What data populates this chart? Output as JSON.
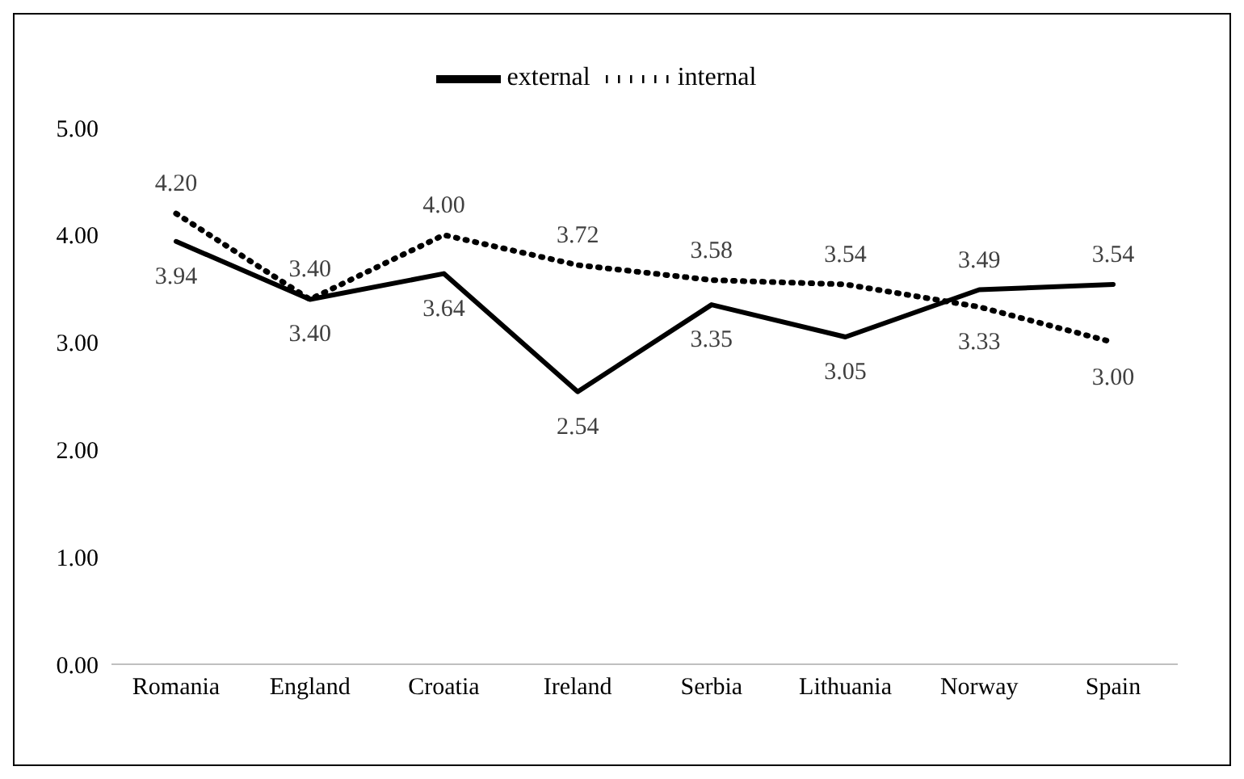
{
  "chart_data": {
    "type": "line",
    "categories": [
      "Romania",
      "England",
      "Croatia",
      "Ireland",
      "Serbia",
      "Lithuania",
      "Norway",
      "Spain"
    ],
    "series": [
      {
        "name": "external",
        "color": "#000000",
        "line_style": "solid",
        "values": [
          3.94,
          3.4,
          3.64,
          2.54,
          3.35,
          3.05,
          3.49,
          3.54
        ],
        "value_labels": [
          "3.94",
          "3.40",
          "3.64",
          "2.54",
          "3.35",
          "3.05",
          "3.49",
          "3.54"
        ]
      },
      {
        "name": "internal",
        "color": "#000000",
        "line_style": "dotted",
        "values": [
          4.2,
          3.4,
          4.0,
          3.72,
          3.58,
          3.54,
          3.33,
          3.0
        ],
        "value_labels": [
          "4.20",
          "3.40",
          "4.00",
          "3.72",
          "3.58",
          "3.54",
          "3.33",
          "3.00"
        ]
      }
    ],
    "ylim": [
      0,
      5
    ],
    "yticks": [
      {
        "value": 0,
        "label": "0.00"
      },
      {
        "value": 1,
        "label": "1.00"
      },
      {
        "value": 2,
        "label": "2.00"
      },
      {
        "value": 3,
        "label": "3.00"
      },
      {
        "value": 4,
        "label": "4.00"
      },
      {
        "value": 5,
        "label": "5.00"
      }
    ],
    "grid": false,
    "legend": "top",
    "marker": "none"
  }
}
